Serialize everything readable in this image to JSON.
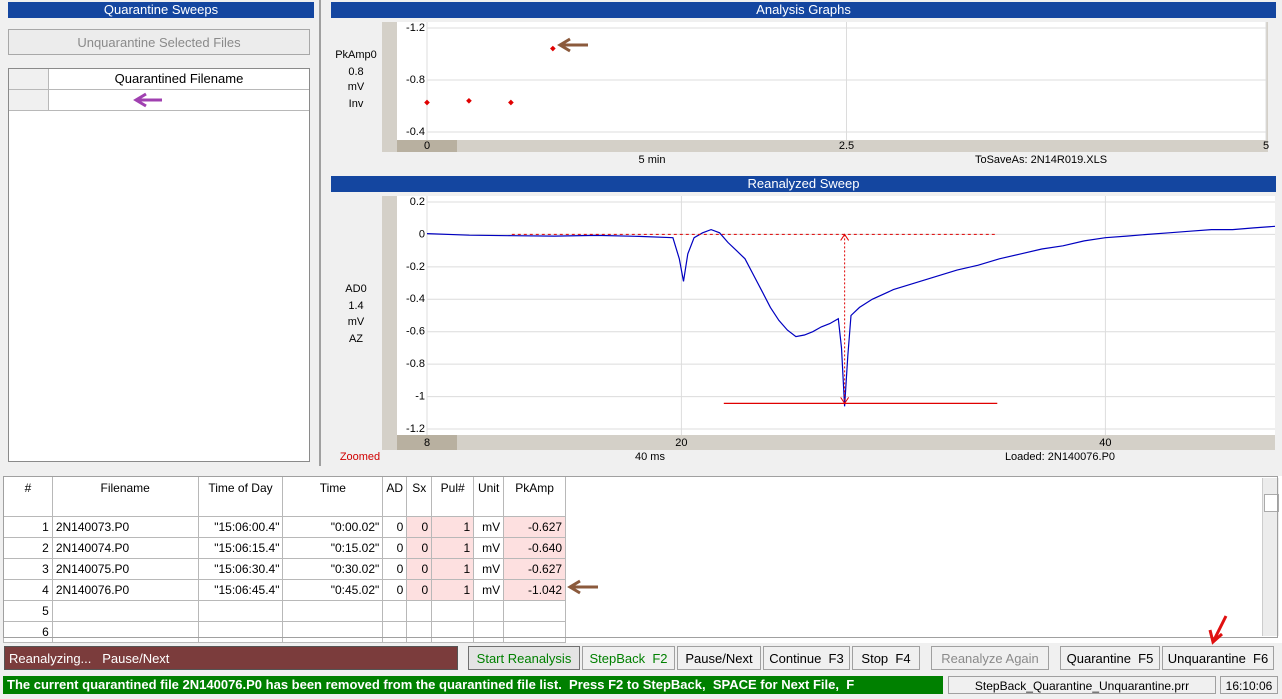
{
  "quarantine_panel": {
    "title": "Quarantine Sweeps",
    "button": "Unquarantine Selected Files",
    "column": "Quarantined Filename"
  },
  "analysis_graph": {
    "title": "Analysis Graphs",
    "type": "scatter",
    "axis_labels": [
      "PkAmp0",
      "0.8",
      "mV",
      "Inv"
    ],
    "x": [
      0,
      0.25,
      0.5,
      0.75
    ],
    "values": [
      -0.627,
      -0.64,
      -0.627,
      -1.042
    ],
    "color": "#e00000",
    "xlim": [
      0,
      5
    ],
    "ylim": [
      -1.2,
      -0.4
    ],
    "inverted": true,
    "xticks": [
      0,
      2.5,
      5
    ],
    "yticks": [
      -1.2,
      -0.8,
      -0.4
    ],
    "grid": true,
    "x_unit": "5 min",
    "footer": "ToSaveAs: 2N14R019.XLS"
  },
  "sweep_graph": {
    "title": "Reanalyzed Sweep",
    "type": "line",
    "axis_labels": [
      "AD0",
      "1.4",
      "mV",
      "AZ"
    ],
    "x": [
      8,
      10,
      12,
      14,
      16,
      18,
      19.6,
      19.9,
      20.1,
      20.3,
      20.6,
      21,
      21.4,
      21.8,
      22.2,
      22.6,
      23,
      23.4,
      23.8,
      24.2,
      24.6,
      25,
      25.4,
      25.8,
      26.2,
      26.6,
      27,
      27.4,
      27.55,
      27.7,
      27.85,
      28,
      28.4,
      29,
      30,
      31,
      32,
      33,
      34,
      35,
      36,
      37,
      38,
      39,
      40,
      41,
      42,
      43,
      44,
      45,
      46,
      47,
      48
    ],
    "values": [
      0.005,
      -0.005,
      -0.008,
      -0.01,
      -0.006,
      -0.012,
      -0.02,
      -0.15,
      -0.29,
      -0.12,
      -0.02,
      0.01,
      0.03,
      0.01,
      -0.05,
      -0.1,
      -0.15,
      -0.25,
      -0.35,
      -0.45,
      -0.53,
      -0.59,
      -0.63,
      -0.62,
      -0.6,
      -0.57,
      -0.55,
      -0.52,
      -0.7,
      -1.06,
      -0.75,
      -0.5,
      -0.45,
      -0.4,
      -0.34,
      -0.3,
      -0.26,
      -0.22,
      -0.19,
      -0.15,
      -0.12,
      -0.09,
      -0.07,
      -0.04,
      -0.02,
      -0.01,
      0.0,
      0.01,
      0.02,
      0.03,
      0.03,
      0.04,
      0.05
    ],
    "color": "#0000c0",
    "xlim": [
      8,
      48
    ],
    "ylim": [
      -1.2,
      0.2
    ],
    "xticks": [
      8,
      20,
      40
    ],
    "yticks": [
      0.2,
      0,
      -0.2,
      -0.4,
      -0.6,
      -0.8,
      -1,
      -1.2
    ],
    "grid": true,
    "baseline": {
      "value": 0,
      "x": [
        12,
        34.8
      ]
    },
    "peak": {
      "value": -1.042,
      "x": 27.7,
      "line_x": [
        22,
        34.9
      ]
    },
    "marker_color": "#e00000",
    "mode": "Zoomed",
    "x_unit": "40 ms",
    "footer": "Loaded: 2N140076.P0"
  },
  "table": {
    "headers": [
      "#",
      "Filename",
      "Time of Day",
      "Time",
      "AD",
      "Sx",
      "Pul#",
      "Unit",
      "PkAmp"
    ],
    "rows": [
      [
        "1",
        "2N140073.P0",
        "\"15:06:00.4\"",
        "\"0:00.02\"",
        "0",
        "0",
        "1",
        "mV",
        "-0.627"
      ],
      [
        "2",
        "2N140074.P0",
        "\"15:06:15.4\"",
        "\"0:15.02\"",
        "0",
        "0",
        "1",
        "mV",
        "-0.640"
      ],
      [
        "3",
        "2N140075.P0",
        "\"15:06:30.4\"",
        "\"0:30.02\"",
        "0",
        "0",
        "1",
        "mV",
        "-0.627"
      ],
      [
        "4",
        "2N140076.P0",
        "\"15:06:45.4\"",
        "\"0:45.02\"",
        "0",
        "0",
        "1",
        "mV",
        "-1.042"
      ],
      [
        "5"
      ],
      [
        "6"
      ]
    ]
  },
  "buttons": [
    "Start Reanalysis",
    "StepBack  F2",
    "Pause/Next",
    "Continue  F3",
    "Stop  F4",
    "Reanalyze Again",
    "Quarantine  F5",
    "Unquarantine  F6"
  ],
  "status": {
    "activity": "Reanalyzing...   Pause/Next",
    "message": "The current quarantined file 2N140076.P0 has been removed from the quarantined file list.  Press F2 to StepBack,  SPACE for Next File,  F",
    "file": "StepBack_Quarantine_Unquarantine.prr",
    "clock": "16:10:06"
  }
}
